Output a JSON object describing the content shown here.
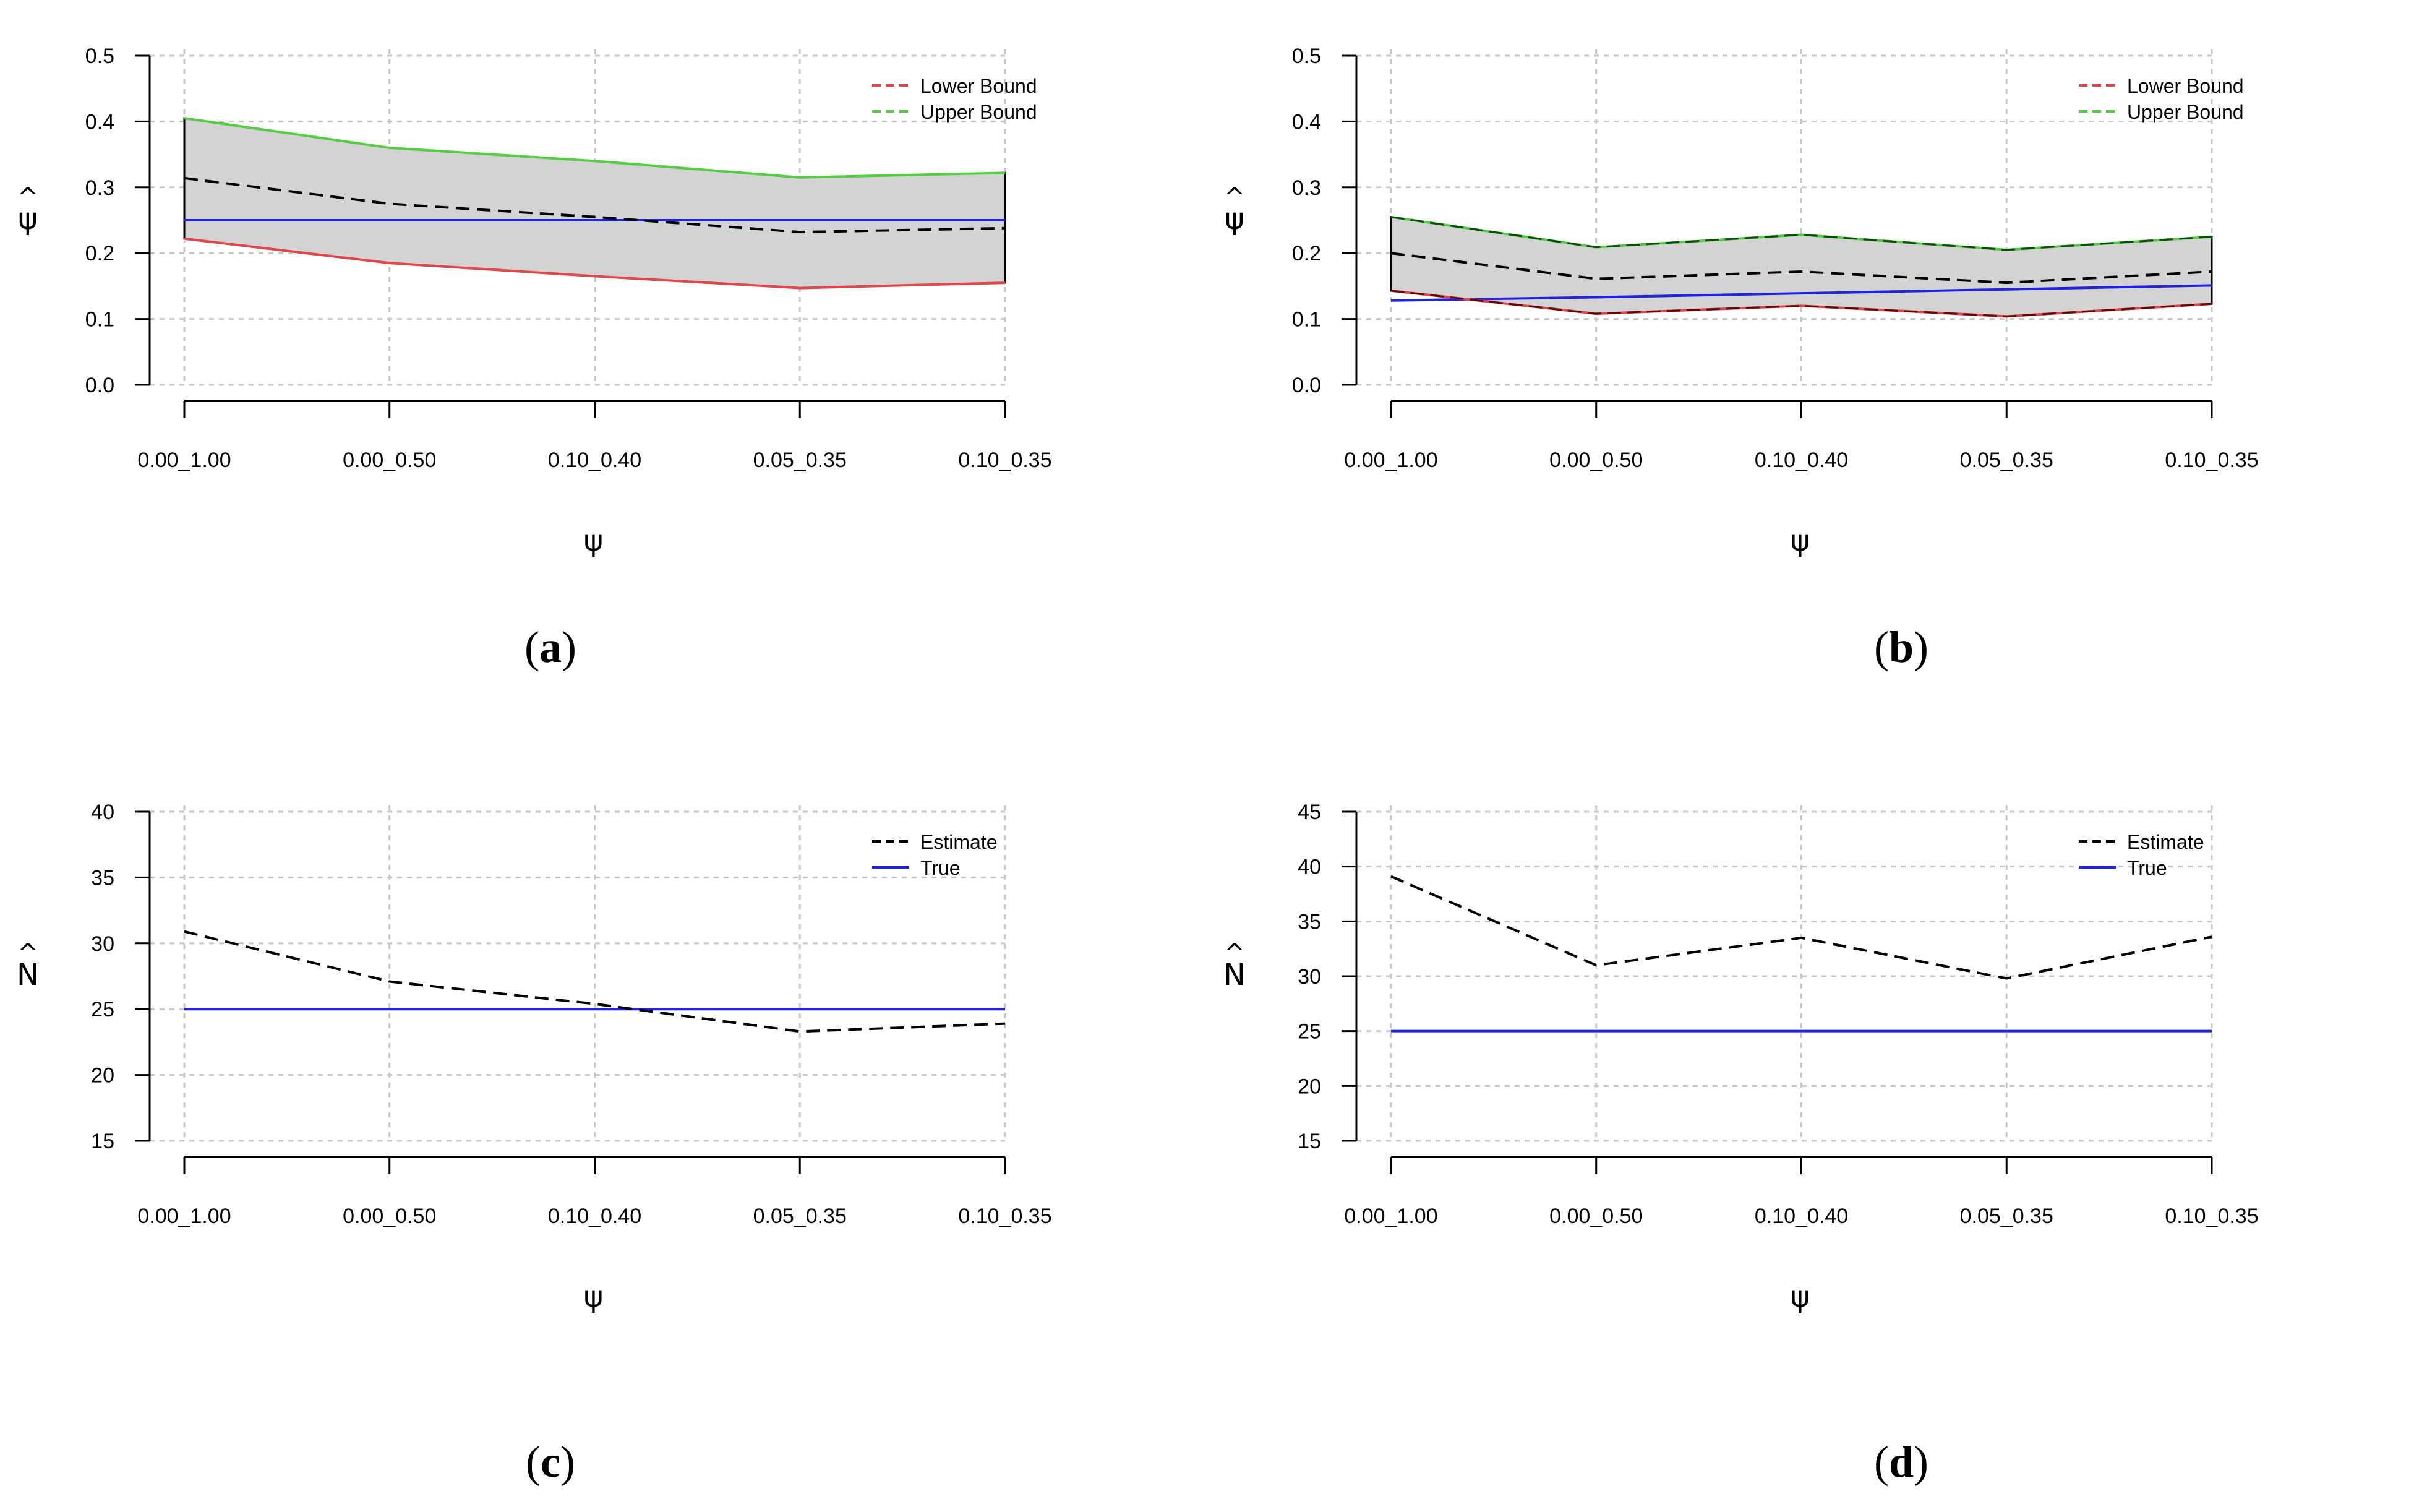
{
  "colors": {
    "lower": "#e0464a",
    "upper": "#55cc44",
    "true": "#2222dd",
    "estimate": "#000000",
    "band": "#d3d3d3",
    "grid": "#c8c8c8"
  },
  "chart_data": [
    {
      "type": "area",
      "panel_label": "a",
      "xlabel": "ψ",
      "ylabel": "ψ̂",
      "ylabel_main": "ψ",
      "ylabel_hat": "^",
      "categories": [
        "0.00_1.00",
        "0.00_0.50",
        "0.10_0.40",
        "0.05_0.35",
        "0.10_0.35"
      ],
      "ylim": [
        0,
        0.5
      ],
      "yticks": [
        "0.0",
        "0.1",
        "0.2",
        "0.3",
        "0.4",
        "0.5"
      ],
      "grid": true,
      "legend": {
        "position": "top-right",
        "entries": [
          {
            "label": "Lower Bound",
            "color": "#e0464a",
            "dash": true
          },
          {
            "label": "Upper Bound",
            "color": "#55cc44",
            "dash": true
          }
        ]
      },
      "series": [
        {
          "name": "Lower Bound",
          "role": "lower",
          "values": [
            0.222,
            0.185,
            0.165,
            0.147,
            0.155
          ]
        },
        {
          "name": "Upper Bound",
          "role": "upper",
          "values": [
            0.405,
            0.36,
            0.34,
            0.315,
            0.322
          ]
        },
        {
          "name": "Estimate",
          "role": "estimate",
          "values": [
            0.314,
            0.275,
            0.255,
            0.232,
            0.238
          ]
        },
        {
          "name": "True",
          "role": "true",
          "values": [
            0.25,
            0.25,
            0.25,
            0.25,
            0.25
          ]
        }
      ]
    },
    {
      "type": "area",
      "panel_label": "b",
      "xlabel": "ψ",
      "ylabel": "ψ̂",
      "ylabel_main": "ψ",
      "ylabel_hat": "^",
      "categories": [
        "0.00_1.00",
        "0.00_0.50",
        "0.10_0.40",
        "0.05_0.35",
        "0.10_0.35"
      ],
      "ylim": [
        0,
        0.5
      ],
      "yticks": [
        "0.0",
        "0.1",
        "0.2",
        "0.3",
        "0.4",
        "0.5"
      ],
      "grid": true,
      "legend": {
        "position": "top-right",
        "entries": [
          {
            "label": "Lower Bound",
            "color": "#e0464a",
            "dash": true
          },
          {
            "label": "Upper Bound",
            "color": "#55cc44",
            "dash": true
          }
        ]
      },
      "series": [
        {
          "name": "Lower Bound",
          "role": "lower",
          "values": [
            0.143,
            0.108,
            0.12,
            0.104,
            0.123
          ]
        },
        {
          "name": "Upper Bound",
          "role": "upper",
          "values": [
            0.255,
            0.209,
            0.228,
            0.205,
            0.225
          ]
        },
        {
          "name": "Estimate",
          "role": "estimate",
          "values": [
            0.2,
            0.161,
            0.172,
            0.155,
            0.172
          ]
        },
        {
          "name": "True",
          "role": "true",
          "values": [
            0.128,
            0.133,
            0.139,
            0.145,
            0.151
          ]
        }
      ]
    },
    {
      "type": "line",
      "panel_label": "c",
      "xlabel": "ψ",
      "ylabel": "N̂",
      "ylabel_main": "N",
      "ylabel_hat": "^",
      "categories": [
        "0.00_1.00",
        "0.00_0.50",
        "0.10_0.40",
        "0.05_0.35",
        "0.10_0.35"
      ],
      "ylim": [
        15,
        40
      ],
      "yticks": [
        "15",
        "20",
        "25",
        "30",
        "35",
        "40"
      ],
      "grid": true,
      "legend": {
        "position": "top-right",
        "entries": [
          {
            "label": "Estimate",
            "color": "#000000",
            "dash": true
          },
          {
            "label": "True",
            "color": "#2222dd",
            "dash": false
          }
        ]
      },
      "series": [
        {
          "name": "Estimate",
          "role": "estimate",
          "values": [
            30.9,
            27.1,
            25.4,
            23.3,
            23.9
          ]
        },
        {
          "name": "True",
          "role": "true",
          "values": [
            25,
            25,
            25,
            25,
            25
          ]
        }
      ]
    },
    {
      "type": "line",
      "panel_label": "d",
      "xlabel": "ψ",
      "ylabel": "N̂",
      "ylabel_main": "N",
      "ylabel_hat": "^",
      "categories": [
        "0.00_1.00",
        "0.00_0.50",
        "0.10_0.40",
        "0.05_0.35",
        "0.10_0.35"
      ],
      "ylim": [
        15,
        45
      ],
      "yticks": [
        "15",
        "20",
        "25",
        "30",
        "35",
        "40",
        "45"
      ],
      "grid": true,
      "legend": {
        "position": "top-right",
        "entries": [
          {
            "label": "Estimate",
            "color": "#000000",
            "dash": true
          },
          {
            "label": "True",
            "color": "#2222dd",
            "dash": false
          }
        ]
      },
      "series": [
        {
          "name": "Estimate",
          "role": "estimate",
          "values": [
            39.1,
            31.0,
            33.5,
            29.8,
            33.6
          ]
        },
        {
          "name": "True",
          "role": "true",
          "values": [
            25,
            25,
            25,
            25,
            25
          ]
        }
      ]
    }
  ]
}
